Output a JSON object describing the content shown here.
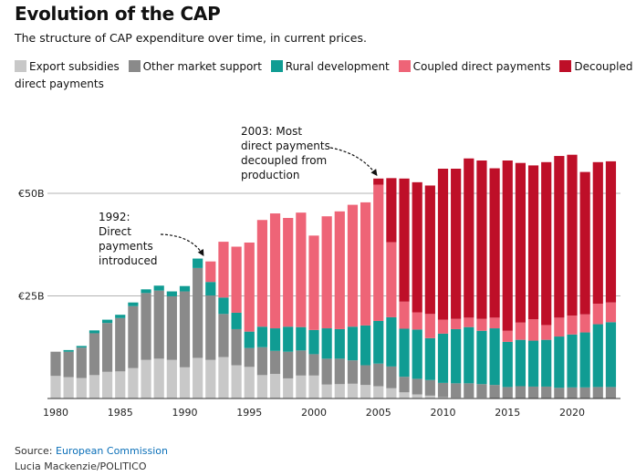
{
  "title": "Evolution of the CAP",
  "subtitle": "The structure of CAP expenditure over time, in current prices.",
  "colors": {
    "export": "#c8c8c8",
    "market": "#8a8a8a",
    "rural": "#109c93",
    "coupled": "#ee6477",
    "decoupled": "#be0f28"
  },
  "source": {
    "label": "Source:",
    "name": "European Commission"
  },
  "credit": "Lucia Mackenzie/POLITICO",
  "chart_data": {
    "type": "bar",
    "stacked": true,
    "ylim": [
      0,
      60
    ],
    "yticks": [
      {
        "value": 25,
        "label": "€25B"
      },
      {
        "value": 50,
        "label": "€50B"
      }
    ],
    "xticks": [
      1980,
      1985,
      1990,
      1995,
      2000,
      2005,
      2010,
      2015,
      2020
    ],
    "grid": "horizontal",
    "legend_position": "top",
    "categories": [
      1980,
      1981,
      1982,
      1983,
      1984,
      1985,
      1986,
      1987,
      1988,
      1989,
      1990,
      1991,
      1992,
      1993,
      1994,
      1995,
      1996,
      1997,
      1998,
      1999,
      2000,
      2001,
      2002,
      2003,
      2004,
      2005,
      2006,
      2007,
      2008,
      2009,
      2010,
      2011,
      2012,
      2013,
      2014,
      2015,
      2016,
      2017,
      2018,
      2019,
      2020,
      2021,
      2022,
      2023
    ],
    "series": [
      {
        "name": "Export subsidies",
        "color": "export",
        "values": [
          5.5,
          5.2,
          5.0,
          5.7,
          6.5,
          6.6,
          7.4,
          9.4,
          9.7,
          9.4,
          7.6,
          9.9,
          9.4,
          10.1,
          8.1,
          7.7,
          5.7,
          6.0,
          4.9,
          5.6,
          5.6,
          3.4,
          3.5,
          3.6,
          3.3,
          3.0,
          2.5,
          1.5,
          1.0,
          0.7,
          0.3,
          0.2,
          0.2,
          0.2,
          0.1,
          0.0,
          0.0,
          0.0,
          0.0,
          0.0,
          0.0,
          0.0,
          0.0,
          0.0
        ]
      },
      {
        "name": "Other market support",
        "color": "market",
        "values": [
          5.9,
          6.2,
          7.4,
          10.2,
          11.9,
          13.0,
          15.1,
          16.3,
          16.6,
          15.5,
          18.5,
          21.9,
          15.7,
          10.5,
          8.8,
          4.6,
          6.8,
          5.6,
          6.5,
          6.1,
          5.2,
          6.3,
          6.2,
          5.7,
          4.8,
          5.5,
          5.3,
          3.8,
          3.8,
          3.8,
          3.5,
          3.5,
          3.5,
          3.3,
          3.2,
          2.8,
          3.0,
          2.9,
          2.9,
          2.6,
          2.7,
          2.7,
          2.8,
          2.8
        ]
      },
      {
        "name": "Rural development",
        "color": "rural",
        "values": [
          0,
          0.4,
          0.4,
          0.7,
          0.8,
          0.8,
          0.9,
          0.9,
          1.2,
          1.2,
          1.3,
          2.3,
          3.3,
          4.0,
          4.0,
          4.0,
          5.0,
          5.5,
          6.1,
          5.7,
          5.9,
          7.4,
          7.2,
          8.2,
          9.7,
          10.4,
          12.0,
          11.7,
          12.0,
          10.2,
          12.0,
          13.2,
          13.7,
          13.0,
          13.8,
          11.0,
          11.3,
          11.2,
          11.4,
          12.5,
          12.9,
          13.4,
          15.3,
          15.8
        ]
      },
      {
        "name": "Coupled direct payments",
        "color": "coupled",
        "values": [
          0,
          0,
          0,
          0,
          0,
          0,
          0,
          0,
          0,
          0,
          0,
          0,
          5.0,
          13.6,
          16.1,
          21.7,
          26.0,
          28.0,
          26.5,
          27.9,
          23.0,
          27.3,
          28.7,
          29.7,
          30.0,
          33.2,
          18.3,
          6.6,
          4.2,
          5.9,
          3.4,
          2.5,
          2.3,
          2.9,
          2.6,
          2.7,
          4.2,
          5.2,
          3.6,
          4.6,
          4.6,
          4.4,
          5.0,
          4.8
        ]
      },
      {
        "name": "Decoupled direct payments",
        "color": "decoupled",
        "values": [
          0,
          0,
          0,
          0,
          0,
          0,
          0,
          0,
          0,
          0,
          0,
          0,
          0,
          0,
          0,
          0,
          0,
          0,
          0,
          0,
          0,
          0,
          0,
          0,
          0,
          1.5,
          15.6,
          30.0,
          31.7,
          31.3,
          36.8,
          36.6,
          38.8,
          38.6,
          36.4,
          41.5,
          38.9,
          37.5,
          39.7,
          39.4,
          39.2,
          34.7,
          34.5,
          34.4
        ]
      }
    ],
    "annotations": [
      {
        "text": [
          "1992:",
          "Direct",
          "payments",
          "introduced"
        ],
        "target_year": 1992
      },
      {
        "text": [
          "2003: Most",
          "direct payments",
          "decoupled from",
          "production"
        ],
        "target_year": 2005
      }
    ]
  }
}
